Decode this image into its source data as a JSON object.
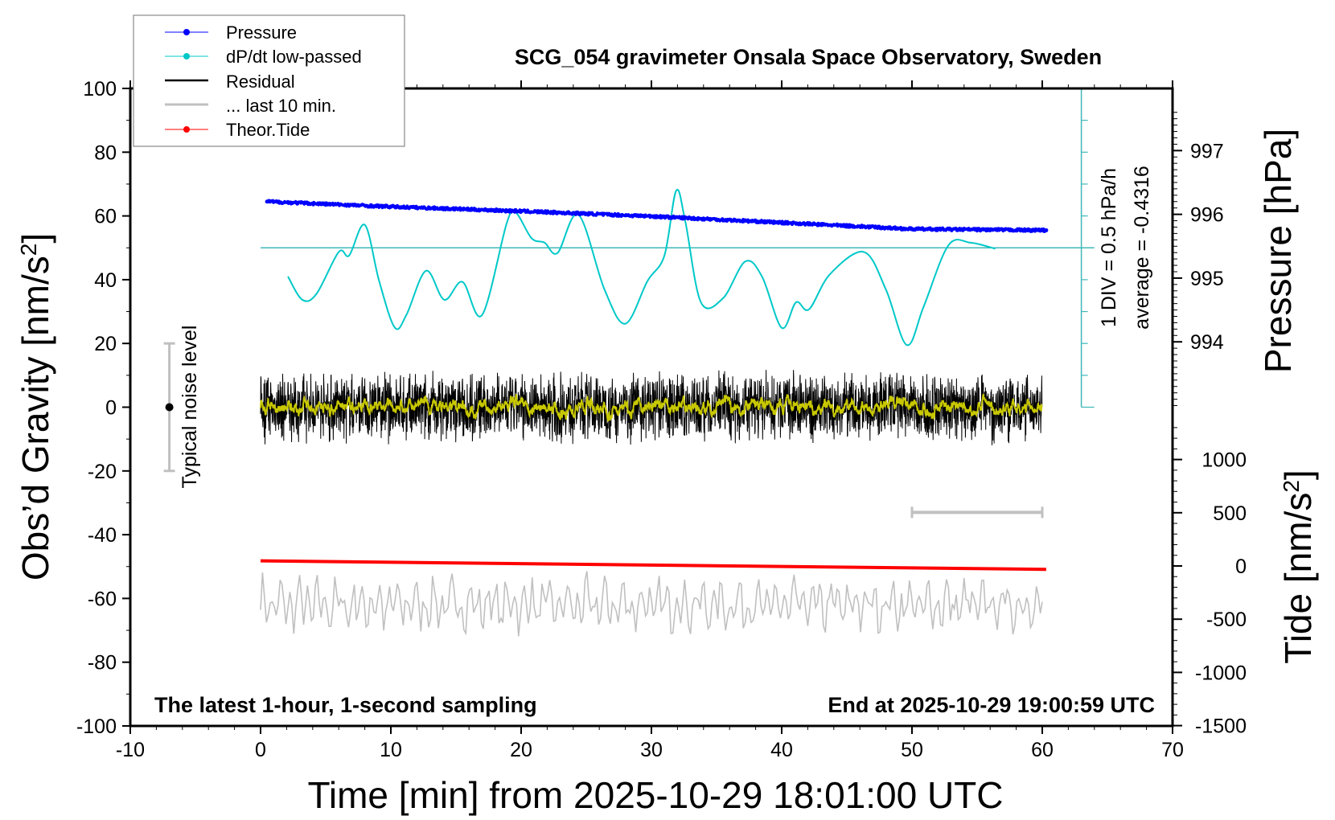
{
  "chart_data": {
    "type": "line",
    "title": "SCG_054 gravimeter Onsala Space Observatory, Sweden",
    "xlabel": "Time [min] from 2025-10-29 18:01:00 UTC",
    "ylabel_left": "Obs'd Gravity [nm/s2]",
    "ylabel_right_top": "Pressure [hPa]",
    "ylabel_right_bottom": "Tide [nm/s2]",
    "xlim": [
      -10,
      70
    ],
    "ylim": [
      -100,
      100
    ],
    "pressure_ylim": [
      992.6,
      997.6
    ],
    "x_ticks": [
      "-10",
      "0",
      "10",
      "20",
      "30",
      "40",
      "50",
      "60",
      "70"
    ],
    "y_ticks": [
      "100",
      "80",
      "60",
      "40",
      "20",
      "0",
      "-20",
      "-40",
      "-60",
      "-80",
      "-100"
    ],
    "pressure_ticks": [
      "997",
      "996",
      "995",
      "994"
    ],
    "tide_ticks": [
      "1000",
      "500",
      "0",
      "-500",
      "-1000",
      "-1500"
    ],
    "legend": [
      "Pressure",
      "dP/dt low-passed",
      "Residual",
      "... last 10 min.",
      "Theor.Tide"
    ],
    "legend_placement": "top-left",
    "annotations": {
      "bottom_left": "The latest 1-hour, 1-second sampling",
      "bottom_right": "End at 2025-10-29 19:00:59 UTC",
      "div": "1 DIV = 0.5 hPa/h",
      "average": "average = -0.4316",
      "noise": "Typical noise level"
    },
    "series": [
      {
        "name": "Pressure",
        "unit": "hPa",
        "x": [
          0.5,
          10,
          20,
          30,
          40,
          50,
          60.3
        ],
        "values": [
          996.2,
          996.12,
          996.05,
          995.97,
          995.87,
          995.77,
          995.75
        ]
      },
      {
        "name": "dP/dt low-passed",
        "unit": "gravity-axis units (1 DIV = 10 = 0.5 hPa/h, baseline 50)",
        "x": [
          2.1,
          3.2,
          4.3,
          6,
          6.8,
          8,
          9.1,
          10.3,
          11.2,
          12.7,
          14.1,
          15.5,
          17,
          18.9,
          19.6,
          20.8,
          21.8,
          22.8,
          24.4,
          26.4,
          28,
          29.7,
          31,
          31.9,
          32.6,
          33.8,
          35.5,
          37.2,
          38.5,
          40,
          41.1,
          42.1,
          43.7,
          46.3,
          48,
          49.6,
          50.9,
          52.8,
          54.5,
          56.4
        ],
        "values": [
          41,
          33.7,
          35.6,
          48.7,
          47.6,
          57.2,
          39.6,
          25,
          29,
          42.8,
          33.7,
          39.3,
          28.9,
          57.8,
          61,
          53,
          51.6,
          48.4,
          60.4,
          36.9,
          26.2,
          39.6,
          47.6,
          67.9,
          58.3,
          32.9,
          34.2,
          45.7,
          40.9,
          24.9,
          32.9,
          30.7,
          41.7,
          48.7,
          36.9,
          19.5,
          31.6,
          50.8,
          51.6,
          49.7
        ]
      },
      {
        "name": "Residual",
        "unit": "nm/s2",
        "x_range": [
          0,
          60
        ],
        "amplitude": 10,
        "mean": 0
      },
      {
        "name": "... last 10 min.",
        "unit": "nm/s2",
        "x_range": [
          0,
          60
        ],
        "offset": -62,
        "amplitude": 8
      },
      {
        "name": "Theor.Tide",
        "unit": "nm/s2 (tide axis)",
        "x": [
          0,
          60.3
        ],
        "values": [
          48,
          -32
        ]
      }
    ],
    "noise_level": {
      "x": -7,
      "center": 0,
      "range": [
        -20,
        20
      ]
    },
    "scale_bar_10min": {
      "x": [
        50,
        60
      ],
      "y": -33
    },
    "dpdt_axis": {
      "x": 63,
      "range": [
        0,
        100
      ],
      "baseline": 50
    },
    "colors": {
      "pressure": "#0000ff",
      "dpdt": "#00c8c8",
      "residual": "#000000",
      "smooth": "#c8c800",
      "last10": "#c0c0c0",
      "tide": "#ff0000",
      "dpdt_axis": "#40b8b8"
    }
  }
}
